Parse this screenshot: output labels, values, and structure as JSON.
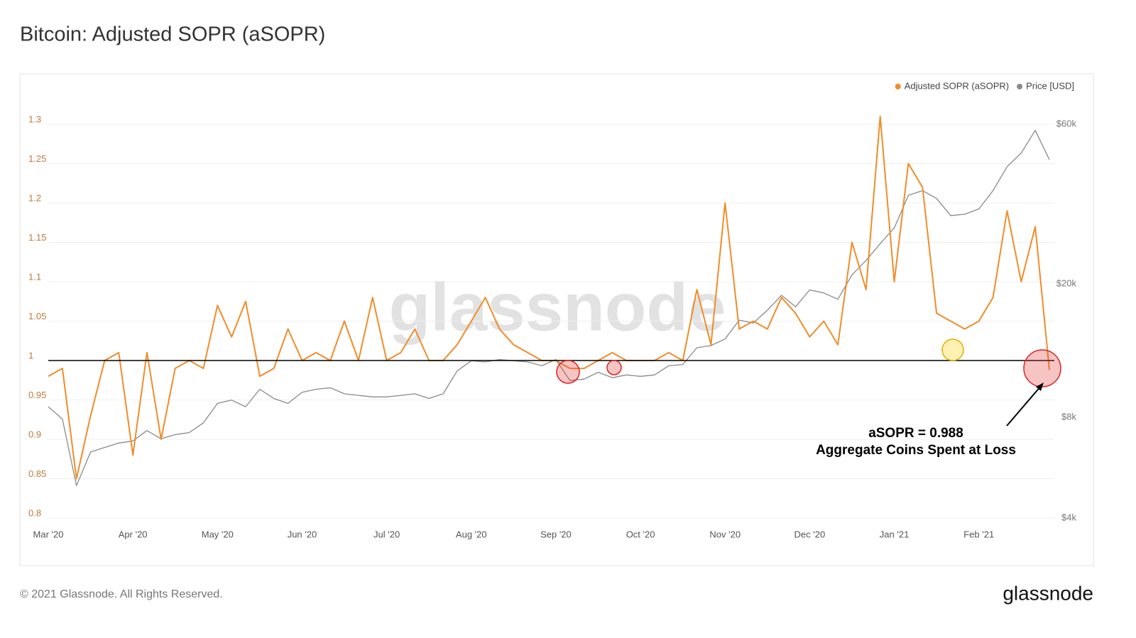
{
  "chart_data": {
    "type": "line",
    "title": "Bitcoin: Adjusted SOPR (aSOPR)",
    "watermark": "glassnode",
    "footer": "© 2021 Glassnode. All Rights Reserved.",
    "logo": "glassnode",
    "annotations": [
      "aSOPR = 0.988",
      "Aggregate Coins Spent at Loss"
    ],
    "categories": [
      "Mar '20",
      null,
      null,
      null,
      null,
      null,
      "Apr '20",
      null,
      null,
      null,
      null,
      null,
      "May '20",
      null,
      null,
      null,
      null,
      null,
      "Jun '20",
      null,
      null,
      null,
      null,
      null,
      "Jul '20",
      null,
      null,
      null,
      null,
      null,
      "Aug '20",
      null,
      null,
      null,
      null,
      null,
      "Sep '20",
      null,
      null,
      null,
      null,
      null,
      "Oct '20",
      null,
      null,
      null,
      null,
      null,
      "Nov '20",
      null,
      null,
      null,
      null,
      null,
      "Dec '20",
      null,
      null,
      null,
      null,
      null,
      "Jan '21",
      null,
      null,
      null,
      null,
      null,
      "Feb '21",
      null,
      null,
      null,
      null,
      null
    ],
    "series": [
      {
        "name": "Adjusted SOPR (aSOPR)",
        "color": "#f28c28",
        "axis": "y",
        "values": [
          0.98,
          0.99,
          0.85,
          0.93,
          1.0,
          1.01,
          0.88,
          1.01,
          0.9,
          0.99,
          1.0,
          0.99,
          1.07,
          1.03,
          1.075,
          0.98,
          0.99,
          1.04,
          1.0,
          1.01,
          1.0,
          1.05,
          1.0,
          1.08,
          1.0,
          1.01,
          1.04,
          1.0,
          1.0,
          1.02,
          1.05,
          1.08,
          1.04,
          1.02,
          1.01,
          1.0,
          1.0,
          0.99,
          0.99,
          1.0,
          1.01,
          1.0,
          1.0,
          1.0,
          1.01,
          1.0,
          1.09,
          1.02,
          1.2,
          1.04,
          1.05,
          1.04,
          1.08,
          1.06,
          1.03,
          1.05,
          1.02,
          1.15,
          1.09,
          1.31,
          1.1,
          1.25,
          1.22,
          1.06,
          1.05,
          1.04,
          1.05,
          1.08,
          1.19,
          1.1,
          1.17,
          0.988
        ]
      },
      {
        "name": "Price [USD]",
        "color": "#8a8a8a",
        "axis": "y2",
        "values": [
          8600,
          7900,
          5000,
          6300,
          6500,
          6700,
          6800,
          7300,
          6900,
          7100,
          7200,
          7700,
          8800,
          9000,
          8600,
          9700,
          9100,
          8800,
          9500,
          9700,
          9800,
          9400,
          9300,
          9200,
          9200,
          9300,
          9400,
          9100,
          9400,
          11000,
          11800,
          11700,
          11900,
          11800,
          11700,
          11400,
          11900,
          10300,
          10400,
          10900,
          10500,
          10700,
          10600,
          10700,
          11400,
          11500,
          12900,
          13100,
          13700,
          15600,
          15300,
          16700,
          18500,
          17100,
          19200,
          18800,
          18000,
          21300,
          23500,
          26400,
          29400,
          36800,
          38000,
          36000,
          32000,
          32300,
          33500,
          38000,
          44800,
          49200,
          57500,
          47000
        ]
      }
    ],
    "ylim": [
      0.8,
      1.3
    ],
    "yticks": [
      0.8,
      0.85,
      0.9,
      0.95,
      1,
      1.05,
      1.1,
      1.15,
      1.2,
      1.25,
      1.3
    ],
    "y2lim": [
      4000,
      60000
    ],
    "y2scale": "log",
    "y2ticks": [
      {
        "value": 4000,
        "label": "$4k"
      },
      {
        "value": 8000,
        "label": "$8k"
      },
      {
        "value": 20000,
        "label": "$20k"
      },
      {
        "value": 60000,
        "label": "$60k"
      }
    ],
    "hline": 1,
    "grid": true,
    "legend": "top-right"
  }
}
